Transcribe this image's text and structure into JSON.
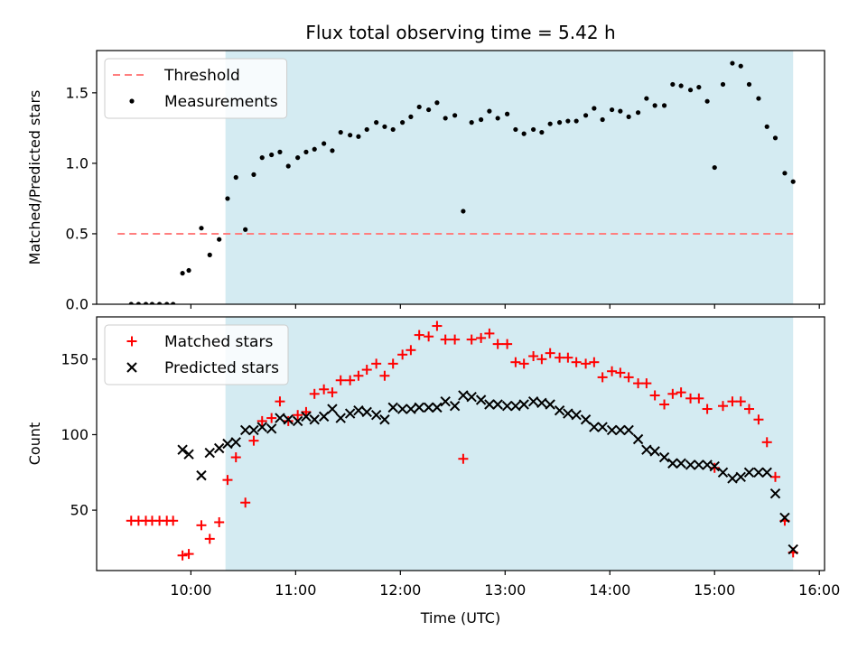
{
  "chart_data": {
    "title": "Flux total observing time = 5.42 h",
    "xlabel": "Time (UTC)",
    "x_unit": "hours UTC",
    "x_ticks": [
      {
        "value": 10,
        "label": "10:00"
      },
      {
        "value": 11,
        "label": "11:00"
      },
      {
        "value": 12,
        "label": "12:00"
      },
      {
        "value": 13,
        "label": "13:00"
      },
      {
        "value": 14,
        "label": "14:00"
      },
      {
        "value": 15,
        "label": "15:00"
      },
      {
        "value": 16,
        "label": "16:00"
      }
    ],
    "xlim": [
      9.1,
      16.05
    ],
    "observing_window": {
      "start": 10.33,
      "end": 15.75,
      "color": "#add8e6"
    },
    "panels": [
      {
        "type": "scatter",
        "ylabel": "Matched/Predicted stars",
        "ylim": [
          0,
          1.8
        ],
        "y_ticks": [
          {
            "value": 0,
            "label": "0.0"
          },
          {
            "value": 0.5,
            "label": "0.5"
          },
          {
            "value": 1.0,
            "label": "1.0"
          },
          {
            "value": 1.5,
            "label": "1.5"
          }
        ],
        "legend": {
          "placement": "top-left"
        },
        "threshold": {
          "name": "Threshold",
          "value": 0.5,
          "x_range": [
            9.3,
            15.75
          ],
          "color": "#ff7f7f",
          "style": "dashed"
        },
        "series": [
          {
            "name": "Measurements",
            "marker": "dot",
            "color": "#000000",
            "points": [
              [
                9.43,
                0.0
              ],
              [
                9.5,
                0.0
              ],
              [
                9.57,
                0.0
              ],
              [
                9.63,
                0.0
              ],
              [
                9.7,
                0.0
              ],
              [
                9.77,
                0.0
              ],
              [
                9.83,
                0.0
              ],
              [
                9.92,
                0.22
              ],
              [
                9.98,
                0.24
              ],
              [
                10.1,
                0.54
              ],
              [
                10.18,
                0.35
              ],
              [
                10.27,
                0.46
              ],
              [
                10.35,
                0.75
              ],
              [
                10.43,
                0.9
              ],
              [
                10.52,
                0.53
              ],
              [
                10.6,
                0.92
              ],
              [
                10.68,
                1.04
              ],
              [
                10.77,
                1.06
              ],
              [
                10.85,
                1.08
              ],
              [
                10.93,
                0.98
              ],
              [
                11.02,
                1.04
              ],
              [
                11.1,
                1.08
              ],
              [
                11.18,
                1.1
              ],
              [
                11.27,
                1.14
              ],
              [
                11.35,
                1.09
              ],
              [
                11.43,
                1.22
              ],
              [
                11.52,
                1.2
              ],
              [
                11.6,
                1.19
              ],
              [
                11.68,
                1.24
              ],
              [
                11.77,
                1.29
              ],
              [
                11.85,
                1.26
              ],
              [
                11.93,
                1.24
              ],
              [
                12.02,
                1.29
              ],
              [
                12.1,
                1.33
              ],
              [
                12.18,
                1.4
              ],
              [
                12.27,
                1.38
              ],
              [
                12.35,
                1.43
              ],
              [
                12.43,
                1.32
              ],
              [
                12.52,
                1.34
              ],
              [
                12.6,
                0.66
              ],
              [
                12.68,
                1.29
              ],
              [
                12.77,
                1.31
              ],
              [
                12.85,
                1.37
              ],
              [
                12.93,
                1.32
              ],
              [
                13.02,
                1.35
              ],
              [
                13.1,
                1.24
              ],
              [
                13.18,
                1.21
              ],
              [
                13.27,
                1.24
              ],
              [
                13.35,
                1.22
              ],
              [
                13.43,
                1.28
              ],
              [
                13.52,
                1.29
              ],
              [
                13.6,
                1.3
              ],
              [
                13.68,
                1.3
              ],
              [
                13.77,
                1.34
              ],
              [
                13.85,
                1.39
              ],
              [
                13.93,
                1.31
              ],
              [
                14.02,
                1.38
              ],
              [
                14.1,
                1.37
              ],
              [
                14.18,
                1.33
              ],
              [
                14.27,
                1.36
              ],
              [
                14.35,
                1.46
              ],
              [
                14.43,
                1.41
              ],
              [
                14.52,
                1.41
              ],
              [
                14.6,
                1.56
              ],
              [
                14.68,
                1.55
              ],
              [
                14.77,
                1.52
              ],
              [
                14.85,
                1.54
              ],
              [
                14.93,
                1.44
              ],
              [
                15.0,
                0.97
              ],
              [
                15.08,
                1.56
              ],
              [
                15.17,
                1.71
              ],
              [
                15.25,
                1.69
              ],
              [
                15.33,
                1.56
              ],
              [
                15.42,
                1.46
              ],
              [
                15.5,
                1.26
              ],
              [
                15.58,
                1.18
              ],
              [
                15.67,
                0.93
              ],
              [
                15.75,
                0.87
              ]
            ]
          }
        ]
      },
      {
        "type": "scatter",
        "ylabel": "Count",
        "ylim": [
          10,
          178
        ],
        "y_ticks": [
          {
            "value": 50,
            "label": "50"
          },
          {
            "value": 100,
            "label": "100"
          },
          {
            "value": 150,
            "label": "150"
          }
        ],
        "legend": {
          "placement": "top-left"
        },
        "series": [
          {
            "name": "Matched stars",
            "marker": "plus",
            "color": "#ff0000",
            "points": [
              [
                9.43,
                43
              ],
              [
                9.5,
                43
              ],
              [
                9.57,
                43
              ],
              [
                9.63,
                43
              ],
              [
                9.7,
                43
              ],
              [
                9.77,
                43
              ],
              [
                9.83,
                43
              ],
              [
                9.92,
                20
              ],
              [
                9.98,
                21
              ],
              [
                10.1,
                40
              ],
              [
                10.18,
                31
              ],
              [
                10.27,
                42
              ],
              [
                10.35,
                70
              ],
              [
                10.43,
                85
              ],
              [
                10.52,
                55
              ],
              [
                10.6,
                96
              ],
              [
                10.68,
                109
              ],
              [
                10.77,
                111
              ],
              [
                10.85,
                122
              ],
              [
                10.93,
                109
              ],
              [
                11.02,
                113
              ],
              [
                11.1,
                115
              ],
              [
                11.18,
                127
              ],
              [
                11.27,
                130
              ],
              [
                11.35,
                128
              ],
              [
                11.43,
                136
              ],
              [
                11.52,
                136
              ],
              [
                11.6,
                139
              ],
              [
                11.68,
                143
              ],
              [
                11.77,
                147
              ],
              [
                11.85,
                139
              ],
              [
                11.93,
                147
              ],
              [
                12.02,
                153
              ],
              [
                12.1,
                156
              ],
              [
                12.18,
                166
              ],
              [
                12.27,
                165
              ],
              [
                12.35,
                172
              ],
              [
                12.43,
                163
              ],
              [
                12.52,
                163
              ],
              [
                12.6,
                84
              ],
              [
                12.68,
                163
              ],
              [
                12.77,
                164
              ],
              [
                12.85,
                167
              ],
              [
                12.93,
                160
              ],
              [
                13.02,
                160
              ],
              [
                13.1,
                148
              ],
              [
                13.18,
                147
              ],
              [
                13.27,
                152
              ],
              [
                13.35,
                150
              ],
              [
                13.43,
                154
              ],
              [
                13.52,
                151
              ],
              [
                13.6,
                151
              ],
              [
                13.68,
                148
              ],
              [
                13.77,
                147
              ],
              [
                13.85,
                148
              ],
              [
                13.93,
                138
              ],
              [
                14.02,
                142
              ],
              [
                14.1,
                141
              ],
              [
                14.18,
                138
              ],
              [
                14.27,
                134
              ],
              [
                14.35,
                134
              ],
              [
                14.43,
                126
              ],
              [
                14.52,
                120
              ],
              [
                14.6,
                127
              ],
              [
                14.68,
                128
              ],
              [
                14.77,
                124
              ],
              [
                14.85,
                124
              ],
              [
                14.93,
                117
              ],
              [
                15.0,
                78
              ],
              [
                15.08,
                119
              ],
              [
                15.17,
                122
              ],
              [
                15.25,
                122
              ],
              [
                15.33,
                117
              ],
              [
                15.42,
                110
              ],
              [
                15.5,
                95
              ],
              [
                15.58,
                72
              ],
              [
                15.67,
                43
              ],
              [
                15.75,
                22
              ]
            ]
          },
          {
            "name": "Predicted stars",
            "marker": "cross",
            "color": "#000000",
            "points": [
              [
                9.92,
                90
              ],
              [
                9.98,
                87
              ],
              [
                10.1,
                73
              ],
              [
                10.18,
                88
              ],
              [
                10.27,
                91
              ],
              [
                10.35,
                94
              ],
              [
                10.43,
                95
              ],
              [
                10.52,
                103
              ],
              [
                10.6,
                103
              ],
              [
                10.68,
                105
              ],
              [
                10.77,
                104
              ],
              [
                10.85,
                111
              ],
              [
                10.93,
                110
              ],
              [
                11.02,
                109
              ],
              [
                11.1,
                112
              ],
              [
                11.18,
                110
              ],
              [
                11.27,
                112
              ],
              [
                11.35,
                117
              ],
              [
                11.43,
                111
              ],
              [
                11.52,
                114
              ],
              [
                11.6,
                116
              ],
              [
                11.68,
                115
              ],
              [
                11.77,
                113
              ],
              [
                11.85,
                110
              ],
              [
                11.93,
                118
              ],
              [
                12.02,
                117
              ],
              [
                12.1,
                117
              ],
              [
                12.18,
                118
              ],
              [
                12.27,
                118
              ],
              [
                12.35,
                118
              ],
              [
                12.43,
                122
              ],
              [
                12.52,
                119
              ],
              [
                12.6,
                126
              ],
              [
                12.68,
                125
              ],
              [
                12.77,
                123
              ],
              [
                12.85,
                120
              ],
              [
                12.93,
                120
              ],
              [
                13.02,
                119
              ],
              [
                13.1,
                119
              ],
              [
                13.18,
                120
              ],
              [
                13.27,
                122
              ],
              [
                13.35,
                121
              ],
              [
                13.43,
                120
              ],
              [
                13.52,
                116
              ],
              [
                13.6,
                114
              ],
              [
                13.68,
                113
              ],
              [
                13.77,
                110
              ],
              [
                13.85,
                105
              ],
              [
                13.93,
                105
              ],
              [
                14.02,
                103
              ],
              [
                14.1,
                103
              ],
              [
                14.18,
                103
              ],
              [
                14.27,
                97
              ],
              [
                14.35,
                90
              ],
              [
                14.43,
                89
              ],
              [
                14.52,
                85
              ],
              [
                14.6,
                81
              ],
              [
                14.68,
                81
              ],
              [
                14.77,
                80
              ],
              [
                14.85,
                80
              ],
              [
                14.93,
                80
              ],
              [
                15.0,
                79
              ],
              [
                15.08,
                75
              ],
              [
                15.17,
                71
              ],
              [
                15.25,
                72
              ],
              [
                15.33,
                75
              ],
              [
                15.42,
                75
              ],
              [
                15.5,
                75
              ],
              [
                15.58,
                61
              ],
              [
                15.67,
                45
              ],
              [
                15.75,
                24
              ]
            ]
          }
        ]
      }
    ]
  }
}
